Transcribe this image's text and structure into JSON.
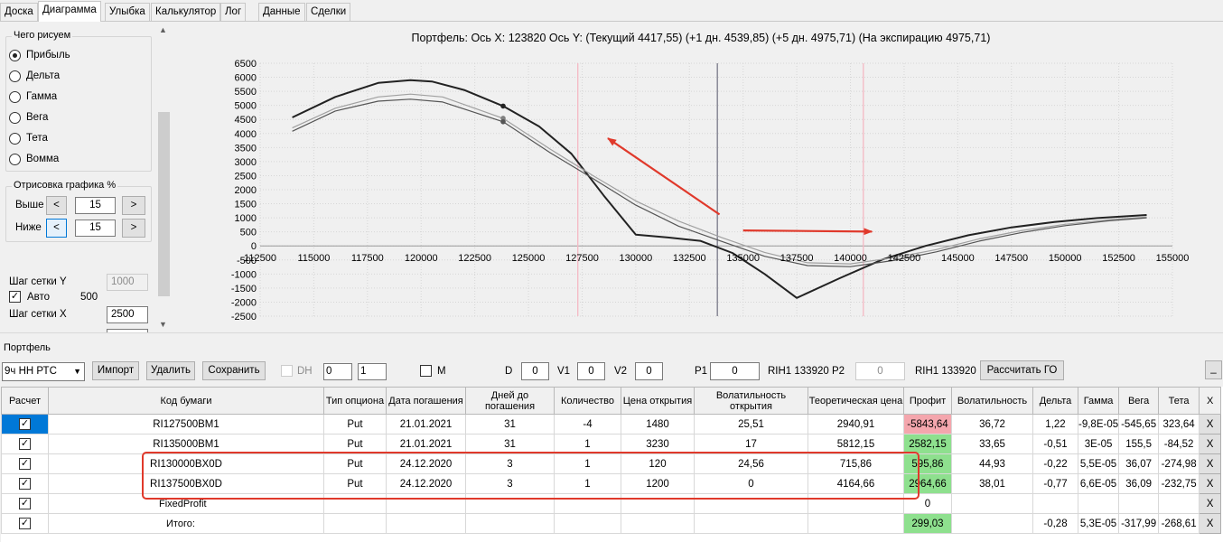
{
  "tabs": [
    "Доска",
    "Диаграмма",
    "Улыбка",
    "Калькулятор",
    "Лог",
    "Данные",
    "Сделки"
  ],
  "left_panel": {
    "draw_group_title": "Чего рисуем",
    "radios": [
      {
        "label": "Прибыль",
        "selected": true
      },
      {
        "label": "Дельта",
        "selected": false
      },
      {
        "label": "Гамма",
        "selected": false
      },
      {
        "label": "Вега",
        "selected": false
      },
      {
        "label": "Тета",
        "selected": false
      },
      {
        "label": "Вомма",
        "selected": false
      }
    ],
    "render_group_title": "Отрисовка графика %",
    "above_label": "Выше",
    "above_value": "15",
    "below_label": "Ниже",
    "below_value": "15",
    "dec_label": "<",
    "inc_label": ">",
    "grid_y_label": "Шаг сетки Y",
    "grid_y_value": "1000",
    "auto_label": "Авто",
    "auto_value": "500",
    "grid_x_label": "Шаг сетки X",
    "grid_x_value": "2500"
  },
  "chart_data": {
    "type": "line",
    "title": "Портфель: Ось X: 123820 Ось Y:  (Текущий 4417,55)  (+1 дн. 4539,85)  (+5 дн. 4975,71)  (На экспирацию 4975,71)",
    "xlim": [
      112500,
      155000
    ],
    "ylim": [
      -2500,
      6500
    ],
    "x_ticks": [
      112500,
      115000,
      117500,
      120000,
      122500,
      125000,
      127500,
      130000,
      132500,
      135000,
      137500,
      140000,
      142500,
      145000,
      147500,
      150000,
      152500,
      155000
    ],
    "y_ticks": [
      6500,
      6000,
      5500,
      5000,
      4500,
      4000,
      3500,
      3000,
      2500,
      2000,
      1500,
      1000,
      500,
      0,
      -500,
      -1000,
      -1500,
      -2000,
      -2500
    ],
    "vertical_lines": [
      {
        "x": 127300,
        "color": "#f4b8c4"
      },
      {
        "x": 133800,
        "color": "#7a7a8a"
      },
      {
        "x": 140600,
        "color": "#f4b8c4"
      }
    ],
    "series": [
      {
        "color": "#222222",
        "width": 2,
        "x": [
          114000,
          116000,
          118000,
          119500,
          120500,
          122000,
          123820,
          125500,
          127000,
          128500,
          130000,
          131500,
          133000,
          134500,
          136000,
          137500,
          139500,
          141500,
          143500,
          145500,
          147500,
          149500,
          151500,
          153800
        ],
        "y": [
          4570,
          5300,
          5800,
          5900,
          5850,
          5550,
          4976,
          4250,
          3280,
          1800,
          400,
          300,
          180,
          -250,
          -1000,
          -1850,
          -1150,
          -480,
          0,
          380,
          660,
          850,
          990,
          1100
        ]
      },
      {
        "color": "#a0a0a0",
        "width": 1.2,
        "x": [
          114000,
          116000,
          118000,
          119500,
          121000,
          123820,
          126000,
          128000,
          130000,
          132000,
          134000,
          136000,
          138000,
          140000,
          142000,
          144000,
          146000,
          148000,
          150000,
          152000,
          153800
        ],
        "y": [
          4200,
          4900,
          5300,
          5400,
          5300,
          4540,
          3450,
          2500,
          1600,
          880,
          300,
          -230,
          -600,
          -640,
          -420,
          -130,
          250,
          550,
          770,
          930,
          1030
        ]
      },
      {
        "color": "#555555",
        "width": 1.2,
        "x": [
          114000,
          116000,
          118000,
          119500,
          121000,
          123820,
          126000,
          128000,
          130000,
          132000,
          134000,
          136000,
          138000,
          140000,
          142000,
          144000,
          146000,
          148000,
          150000,
          152000,
          153800
        ],
        "y": [
          4080,
          4800,
          5150,
          5220,
          5120,
          4418,
          3320,
          2400,
          1450,
          700,
          160,
          -370,
          -700,
          -740,
          -520,
          -210,
          170,
          480,
          720,
          890,
          1000
        ]
      }
    ],
    "markers": [
      {
        "x": 123820,
        "y": 4976,
        "color": "#222222"
      },
      {
        "x": 123820,
        "y": 4540,
        "color": "#808080"
      },
      {
        "x": 123820,
        "y": 4418,
        "color": "#555555"
      }
    ],
    "annotation_arrows": [
      {
        "from": [
          133900,
          1120
        ],
        "to": [
          128700,
          3830
        ],
        "color": "#e0392b"
      },
      {
        "from": [
          135000,
          550
        ],
        "to": [
          141000,
          510
        ],
        "color": "#e0392b"
      }
    ],
    "grid": true
  },
  "portfolio": {
    "label": "Портфель",
    "selector": "9ч НН РТС",
    "import": "Импорт",
    "delete": "Удалить",
    "save": "Сохранить",
    "dh_label": "DH",
    "spin1": "0",
    "spin2": "1",
    "m_label": "M",
    "d_label": "D",
    "d_value": "0",
    "v1_label": "V1",
    "v1_value": "0",
    "v2_label": "V2",
    "v2_value": "0",
    "p1_label": "P1",
    "p1_value": "0",
    "p1_code": "RIH1 133920",
    "p2_label": "P2",
    "p2_value": "0",
    "p2_code": "RIH1 133920",
    "calc_go": "Рассчитать ГО",
    "minimize": "_"
  },
  "table": {
    "headers": [
      "Расчет",
      "Код бумаги",
      "Тип опциона",
      "Дата погашения",
      "Дней до погашения",
      "Количество",
      "Цена открытия",
      "Волатильность открытия",
      "Теоретическая цена",
      "Профит",
      "Волатильность",
      "Дельта",
      "Гамма",
      "Вега",
      "Тета",
      "X"
    ],
    "rows": [
      {
        "cells": [
          "RI127500BM1",
          "Put",
          "21.01.2021",
          "31",
          "-4",
          "1480",
          "25,51",
          "2940,91",
          "-5843,64",
          "36,72",
          "1,22",
          "-9,8E-05",
          "-545,65",
          "323,64",
          "X"
        ],
        "profit_color": "#f4a6ad",
        "selected": true
      },
      {
        "cells": [
          "RI135000BM1",
          "Put",
          "21.01.2021",
          "31",
          "1",
          "3230",
          "17",
          "5812,15",
          "2582,15",
          "33,65",
          "-0,51",
          "3E-05",
          "155,5",
          "-84,52",
          "X"
        ],
        "profit_color": "#8ee08e"
      },
      {
        "cells": [
          "RI130000BX0D",
          "Put",
          "24.12.2020",
          "3",
          "1",
          "120",
          "24,56",
          "715,86",
          "595,86",
          "44,93",
          "-0,22",
          "5,5E-05",
          "36,07",
          "-274,98",
          "X"
        ],
        "profit_color": "#8ee08e"
      },
      {
        "cells": [
          "RI137500BX0D",
          "Put",
          "24.12.2020",
          "3",
          "1",
          "1200",
          "0",
          "4164,66",
          "2964,66",
          "38,01",
          "-0,77",
          "6,6E-05",
          "36,09",
          "-232,75",
          "X"
        ],
        "profit_color": "#8ee08e"
      },
      {
        "cells": [
          "FixedProfit",
          "",
          "",
          "",
          "",
          "",
          "",
          "",
          "0",
          "",
          "",
          "",
          "",
          "",
          "X"
        ],
        "profit_color": ""
      },
      {
        "cells": [
          "Итого:",
          "",
          "",
          "",
          "",
          "",
          "",
          "",
          "299,03",
          "",
          "-0,28",
          "5,3E-05",
          "-317,99",
          "-268,61",
          "X"
        ],
        "profit_color": "#8ee08e"
      }
    ]
  }
}
